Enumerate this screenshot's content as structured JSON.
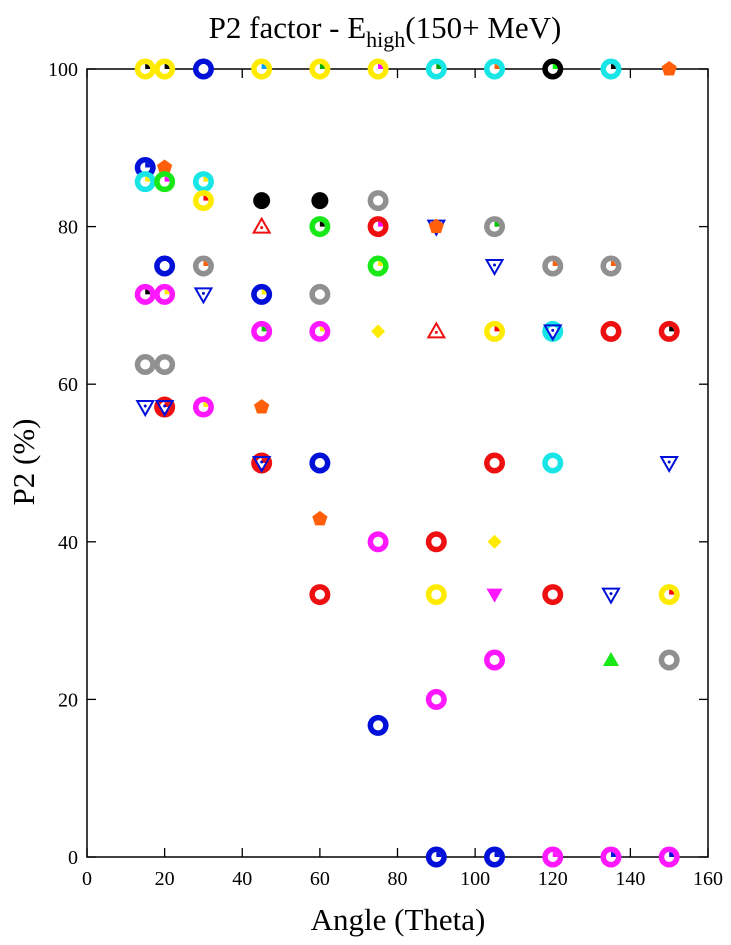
{
  "chart_data": {
    "type": "scatter",
    "title": {
      "main": "P2 factor - E",
      "subscript": "high",
      "suffix": "(150+ MeV)"
    },
    "xlabel": "Angle (Theta)",
    "ylabel": "P2 (%)",
    "xlim": [
      0,
      160
    ],
    "ylim": [
      0,
      100
    ],
    "xticks": [
      "0",
      "20",
      "40",
      "60",
      "80",
      "100",
      "120",
      "140",
      "160"
    ],
    "yticks": [
      "0",
      "20",
      "40",
      "60",
      "80",
      "100"
    ],
    "grid": false,
    "legend": "none",
    "points": [
      {
        "x": 15,
        "y": 100,
        "marker": "ring",
        "color": "#ffeb00",
        "inner": "#000000"
      },
      {
        "x": 20,
        "y": 100,
        "marker": "ring",
        "color": "#ffeb00",
        "inner": "#000000"
      },
      {
        "x": 30,
        "y": 100,
        "marker": "ring",
        "color": "#0010d8",
        "inner": "#ffffff"
      },
      {
        "x": 45,
        "y": 100,
        "marker": "ring",
        "color": "#ffeb00",
        "inner": "#00a0ff"
      },
      {
        "x": 60,
        "y": 100,
        "marker": "ring",
        "color": "#ffeb00",
        "inner": "#00b000"
      },
      {
        "x": 75,
        "y": 100,
        "marker": "ring",
        "color": "#ffeb00",
        "inner": "#ff00ff"
      },
      {
        "x": 90,
        "y": 100,
        "marker": "ring",
        "color": "#18e6e6",
        "inner": "#00a000"
      },
      {
        "x": 105,
        "y": 100,
        "marker": "ring",
        "color": "#18e6e6",
        "inner": "#ff6000"
      },
      {
        "x": 120,
        "y": 100,
        "marker": "ring",
        "color": "#000000",
        "inner": "#00ff00"
      },
      {
        "x": 135,
        "y": 100,
        "marker": "ring",
        "color": "#18e6e6",
        "inner": "#000000"
      },
      {
        "x": 150,
        "y": 100,
        "marker": "pentagon",
        "color": "#ff5f0a"
      },
      {
        "x": 15,
        "y": 87.5,
        "marker": "ring",
        "color": "#0010d8",
        "inner": "#0010d8"
      },
      {
        "x": 20,
        "y": 87.5,
        "marker": "pentagon",
        "color": "#ff5f0a"
      },
      {
        "x": 15,
        "y": 85.7,
        "marker": "ring",
        "color": "#18e6e6",
        "inner": "#ffeb00"
      },
      {
        "x": 20,
        "y": 85.7,
        "marker": "ring",
        "color": "#18e818",
        "inner": "#ff00ff"
      },
      {
        "x": 30,
        "y": 85.7,
        "marker": "ring",
        "color": "#18e6e6",
        "inner": "#ffeb00"
      },
      {
        "x": 30,
        "y": 83.3,
        "marker": "ring",
        "color": "#ffeb00",
        "inner": "#ff0000"
      },
      {
        "x": 45,
        "y": 83.3,
        "marker": "dot",
        "color": "#000000"
      },
      {
        "x": 60,
        "y": 83.3,
        "marker": "dot",
        "color": "#000000"
      },
      {
        "x": 75,
        "y": 83.3,
        "marker": "ring",
        "color": "#909090",
        "inner": "#ffffff"
      },
      {
        "x": 45,
        "y": 80,
        "marker": "triangle-up-open",
        "color": "#ee1010"
      },
      {
        "x": 60,
        "y": 80,
        "marker": "ring",
        "color": "#18e818",
        "inner": "#000000"
      },
      {
        "x": 75,
        "y": 80,
        "marker": "ring",
        "color": "#ee1010",
        "inner": "#ff00ff"
      },
      {
        "x": 90,
        "y": 80,
        "marker": "triangle-down-open",
        "color": "#0010d8"
      },
      {
        "x": 90,
        "y": 80,
        "marker": "pentagon",
        "color": "#ff5f0a"
      },
      {
        "x": 105,
        "y": 80,
        "marker": "ring",
        "color": "#909090",
        "inner": "#00c000"
      },
      {
        "x": 20,
        "y": 75,
        "marker": "ring",
        "color": "#0010d8",
        "inner": "#ffffff"
      },
      {
        "x": 30,
        "y": 75,
        "marker": "ring",
        "color": "#909090",
        "inner": "#ff5f0a"
      },
      {
        "x": 75,
        "y": 75,
        "marker": "ring",
        "color": "#18e818",
        "inner": "#ffeb00"
      },
      {
        "x": 105,
        "y": 75,
        "marker": "triangle-down-open",
        "color": "#0010d8"
      },
      {
        "x": 120,
        "y": 75,
        "marker": "ring",
        "color": "#909090",
        "inner": "#ff5f0a"
      },
      {
        "x": 135,
        "y": 75,
        "marker": "ring",
        "color": "#909090",
        "inner": "#ff5f0a"
      },
      {
        "x": 15,
        "y": 71.4,
        "marker": "ring",
        "color": "#ff18ff",
        "inner": "#000000"
      },
      {
        "x": 20,
        "y": 71.4,
        "marker": "ring",
        "color": "#ff18ff",
        "inner": "#ffeb00"
      },
      {
        "x": 30,
        "y": 71.4,
        "marker": "triangle-down-open",
        "color": "#0010d8"
      },
      {
        "x": 45,
        "y": 71.4,
        "marker": "ring",
        "color": "#0010d8",
        "inner": "#ffeb00"
      },
      {
        "x": 60,
        "y": 71.4,
        "marker": "ring",
        "color": "#909090",
        "inner": "#ffffff"
      },
      {
        "x": 45,
        "y": 66.7,
        "marker": "ring",
        "color": "#ff18ff",
        "inner": "#00c000"
      },
      {
        "x": 60,
        "y": 66.7,
        "marker": "ring",
        "color": "#ff18ff",
        "inner": "#ffeb00"
      },
      {
        "x": 75,
        "y": 66.7,
        "marker": "diamond",
        "color": "#ffeb00"
      },
      {
        "x": 90,
        "y": 66.7,
        "marker": "triangle-up-open",
        "color": "#ee1010"
      },
      {
        "x": 105,
        "y": 66.7,
        "marker": "ring",
        "color": "#ffeb00",
        "inner": "#ff0000"
      },
      {
        "x": 120,
        "y": 66.7,
        "marker": "ring",
        "color": "#18e6e6",
        "inner": "#ffffff"
      },
      {
        "x": 120,
        "y": 66.7,
        "marker": "triangle-down-open",
        "color": "#0010d8"
      },
      {
        "x": 135,
        "y": 66.7,
        "marker": "ring",
        "color": "#ee1010",
        "inner": "#ffffff"
      },
      {
        "x": 150,
        "y": 66.7,
        "marker": "ring",
        "color": "#ee1010",
        "inner": "#000000"
      },
      {
        "x": 15,
        "y": 62.5,
        "marker": "ring",
        "color": "#909090",
        "inner": "#ffffff"
      },
      {
        "x": 20,
        "y": 62.5,
        "marker": "ring",
        "color": "#909090",
        "inner": "#ffffff"
      },
      {
        "x": 15,
        "y": 57.1,
        "marker": "triangle-down-open",
        "color": "#0010d8"
      },
      {
        "x": 20,
        "y": 57.1,
        "marker": "ring",
        "color": "#ee1010",
        "inner": "#ee1010"
      },
      {
        "x": 20,
        "y": 57.1,
        "marker": "triangle-down-open",
        "color": "#0010d8"
      },
      {
        "x": 30,
        "y": 57.1,
        "marker": "ring",
        "color": "#ff18ff",
        "inner": "#ffeb00"
      },
      {
        "x": 45,
        "y": 57.1,
        "marker": "pentagon",
        "color": "#ff5f0a"
      },
      {
        "x": 45,
        "y": 50,
        "marker": "ring",
        "color": "#ee1010",
        "inner": "#ee1010"
      },
      {
        "x": 45,
        "y": 50,
        "marker": "triangle-down-open",
        "color": "#0010d8"
      },
      {
        "x": 60,
        "y": 50,
        "marker": "ring",
        "color": "#0010d8",
        "inner": "#ffffff"
      },
      {
        "x": 105,
        "y": 50,
        "marker": "ring",
        "color": "#ee1010",
        "inner": "#ffffff"
      },
      {
        "x": 120,
        "y": 50,
        "marker": "ring",
        "color": "#18e6e6",
        "inner": "#ffffff"
      },
      {
        "x": 150,
        "y": 50,
        "marker": "triangle-down-open",
        "color": "#0010d8"
      },
      {
        "x": 60,
        "y": 42.9,
        "marker": "pentagon",
        "color": "#ff5f0a"
      },
      {
        "x": 75,
        "y": 40,
        "marker": "ring",
        "color": "#ff18ff",
        "inner": "#ffffff"
      },
      {
        "x": 90,
        "y": 40,
        "marker": "ring",
        "color": "#ee1010",
        "inner": "#ffffff"
      },
      {
        "x": 105,
        "y": 40,
        "marker": "diamond",
        "color": "#ffeb00"
      },
      {
        "x": 60,
        "y": 33.3,
        "marker": "ring",
        "color": "#ee1010",
        "inner": "#ffffff"
      },
      {
        "x": 90,
        "y": 33.3,
        "marker": "ring",
        "color": "#ffeb00",
        "inner": "#ffffff"
      },
      {
        "x": 105,
        "y": 33.3,
        "marker": "triangle-down",
        "color": "#ff18ff"
      },
      {
        "x": 120,
        "y": 33.3,
        "marker": "ring",
        "color": "#ee1010",
        "inner": "#ffffff"
      },
      {
        "x": 135,
        "y": 33.3,
        "marker": "triangle-down-open",
        "color": "#0010d8"
      },
      {
        "x": 150,
        "y": 33.3,
        "marker": "ring",
        "color": "#ffeb00",
        "inner": "#ff0000"
      },
      {
        "x": 105,
        "y": 25,
        "marker": "ring",
        "color": "#ff18ff",
        "inner": "#ffffff"
      },
      {
        "x": 135,
        "y": 25,
        "marker": "triangle-up",
        "color": "#18e818"
      },
      {
        "x": 150,
        "y": 25,
        "marker": "ring",
        "color": "#909090",
        "inner": "#ffffff"
      },
      {
        "x": 90,
        "y": 20,
        "marker": "ring",
        "color": "#ff18ff",
        "inner": "#ffffff"
      },
      {
        "x": 75,
        "y": 16.7,
        "marker": "ring",
        "color": "#0010d8",
        "inner": "#ffffff"
      },
      {
        "x": 90,
        "y": 0,
        "marker": "ring",
        "color": "#0010d8",
        "inner": "#0010d8"
      },
      {
        "x": 105,
        "y": 0,
        "marker": "ring",
        "color": "#0010d8",
        "inner": "#0010d8"
      },
      {
        "x": 120,
        "y": 0,
        "marker": "ring",
        "color": "#ff18ff",
        "inner": "#ff18ff"
      },
      {
        "x": 135,
        "y": 0,
        "marker": "ring",
        "color": "#ff18ff",
        "inner": "#0010d8"
      },
      {
        "x": 150,
        "y": 0,
        "marker": "ring",
        "color": "#ff18ff",
        "inner": "#0010d8"
      }
    ]
  }
}
